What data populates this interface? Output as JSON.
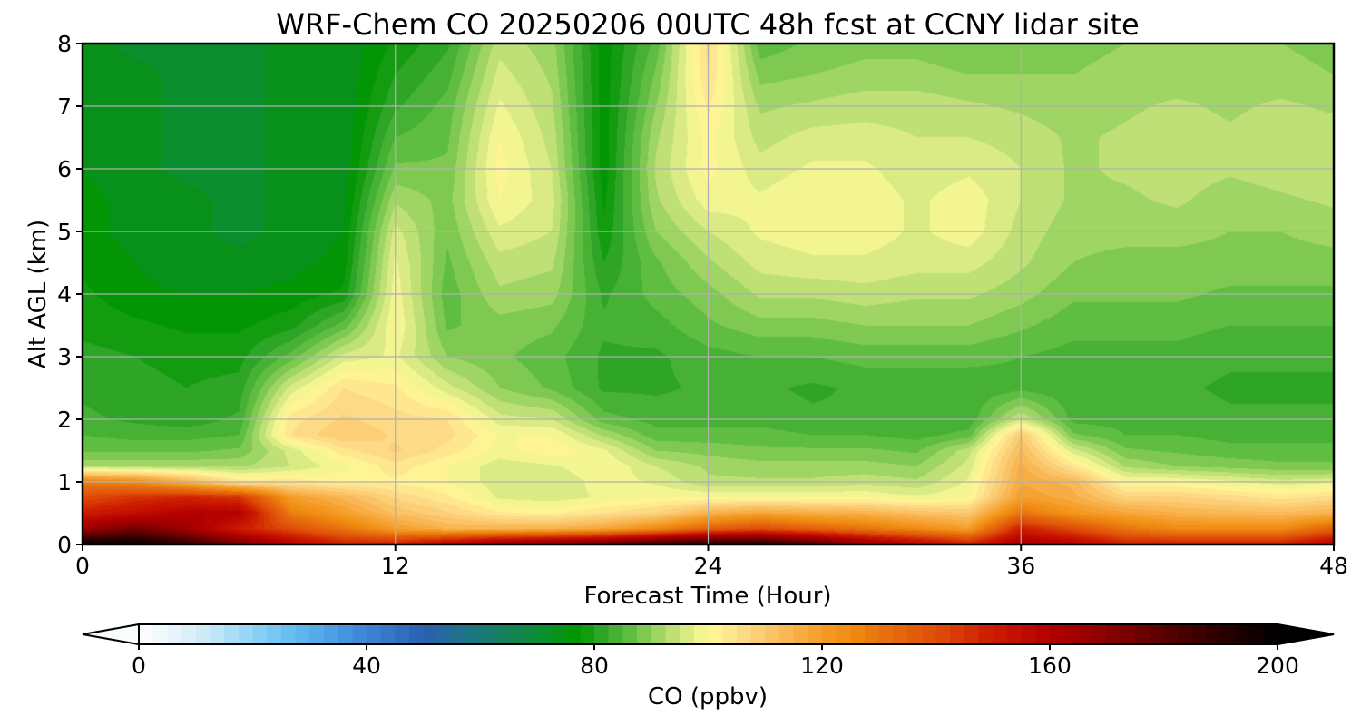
{
  "chart_data": {
    "type": "heatmap",
    "title": "WRF-Chem CO  20250206 00UTC 48h fcst at CCNY lidar site",
    "xlabel": "Forecast Time (Hour)",
    "ylabel": "Alt AGL (km)",
    "xlim": [
      0,
      48
    ],
    "ylim": [
      0,
      8
    ],
    "xticks": [
      0,
      12,
      24,
      36,
      48
    ],
    "yticks": [
      0,
      1,
      2,
      3,
      4,
      5,
      6,
      7,
      8
    ],
    "grid": true,
    "z_units": "ppbv",
    "x": [
      0,
      2,
      4,
      6,
      8,
      10,
      12,
      14,
      16,
      18,
      20,
      22,
      24,
      26,
      28,
      30,
      32,
      34,
      36,
      38,
      40,
      42,
      44,
      46,
      48
    ],
    "y": [
      0,
      0.25,
      0.5,
      0.75,
      1,
      1.25,
      1.5,
      1.75,
      2,
      2.5,
      3,
      3.5,
      4,
      4.5,
      5,
      5.5,
      6,
      6.5,
      7,
      7.5,
      8
    ],
    "z": [
      [
        200,
        200,
        190,
        175,
        160,
        150,
        150,
        160,
        170,
        175,
        180,
        190,
        195,
        195,
        185,
        170,
        160,
        150,
        165,
        160,
        150,
        150,
        150,
        150,
        160
      ],
      [
        165,
        175,
        165,
        150,
        140,
        130,
        120,
        115,
        115,
        115,
        118,
        125,
        135,
        140,
        135,
        130,
        125,
        120,
        150,
        140,
        130,
        125,
        125,
        125,
        135
      ],
      [
        150,
        155,
        160,
        160,
        128,
        120,
        112,
        108,
        103,
        102,
        105,
        108,
        115,
        118,
        116,
        115,
        112,
        110,
        130,
        122,
        118,
        115,
        114,
        113,
        115
      ],
      [
        140,
        145,
        148,
        145,
        120,
        114,
        107,
        103,
        97,
        96,
        98,
        100,
        100,
        100,
        100,
        100,
        98,
        100,
        120,
        116,
        108,
        108,
        106,
        104,
        106
      ],
      [
        128,
        125,
        115,
        104,
        104,
        102,
        102,
        100,
        96,
        95,
        99,
        97,
        93,
        93,
        93,
        94,
        93,
        98,
        117,
        114,
        100,
        100,
        98,
        96,
        97
      ],
      [
        92,
        92,
        92,
        92,
        95,
        99,
        104,
        100,
        96,
        97,
        100,
        95,
        92,
        91,
        91,
        91,
        90,
        96,
        116,
        104,
        92,
        90,
        89,
        88,
        88
      ],
      [
        87,
        87,
        87,
        88,
        96,
        104,
        108,
        104,
        99,
        102,
        98,
        90,
        89,
        88,
        88,
        88,
        87,
        94,
        113,
        96,
        88,
        87,
        86,
        86,
        86
      ],
      [
        85,
        84,
        84,
        85,
        105,
        110,
        107,
        106,
        100,
        100,
        92,
        86,
        86,
        86,
        85,
        85,
        84,
        86,
        110,
        88,
        85,
        85,
        84,
        84,
        84
      ],
      [
        83,
        82,
        81,
        83,
        104,
        108,
        106,
        105,
        96,
        95,
        86,
        84,
        84,
        84,
        83,
        83,
        83,
        83,
        95,
        84,
        84,
        84,
        83,
        83,
        83
      ],
      [
        82,
        81,
        80,
        81,
        96,
        105,
        103,
        96,
        90,
        87,
        82,
        82,
        83,
        83,
        82,
        83,
        83,
        83,
        84,
        83,
        83,
        83,
        82,
        82,
        82
      ],
      [
        81,
        80,
        79,
        79,
        86,
        96,
        98,
        90,
        88,
        86,
        82,
        82,
        84,
        85,
        85,
        86,
        86,
        86,
        85,
        84,
        84,
        84,
        83,
        83,
        83
      ],
      [
        79,
        78,
        77,
        77,
        79,
        86,
        100,
        87,
        89,
        88,
        83,
        84,
        87,
        89,
        89,
        90,
        90,
        90,
        88,
        86,
        86,
        86,
        85,
        85,
        85
      ],
      [
        78,
        76,
        75,
        75,
        76,
        78,
        99,
        86,
        92,
        91,
        82,
        86,
        89,
        93,
        93,
        94,
        93,
        93,
        91,
        88,
        88,
        88,
        87,
        87,
        87
      ],
      [
        77,
        75,
        73,
        73,
        74,
        76,
        98,
        87,
        94,
        93,
        80,
        87,
        92,
        96,
        97,
        97,
        96,
        96,
        93,
        90,
        89,
        89,
        89,
        89,
        89
      ],
      [
        76,
        74,
        73,
        72,
        73,
        75,
        96,
        88,
        97,
        95,
        78,
        90,
        95,
        98,
        99,
        99,
        97,
        99,
        94,
        91,
        91,
        91,
        90,
        90,
        91
      ],
      [
        76,
        74,
        73,
        72,
        73,
        74,
        92,
        89,
        100,
        96,
        77,
        92,
        99,
        98,
        100,
        99,
        97,
        99,
        95,
        92,
        92,
        93,
        91,
        92,
        93
      ],
      [
        75,
        73,
        72,
        72,
        73,
        73,
        88,
        88,
        101,
        95,
        76,
        93,
        101,
        96,
        98,
        98,
        96,
        97,
        95,
        92,
        93,
        94,
        93,
        94,
        95
      ],
      [
        75,
        73,
        72,
        72,
        73,
        73,
        85,
        87,
        100,
        94,
        76,
        92,
        101,
        94,
        96,
        96,
        95,
        95,
        94,
        92,
        93,
        94,
        93,
        94,
        94
      ],
      [
        74,
        73,
        72,
        72,
        73,
        73,
        82,
        86,
        98,
        93,
        76,
        90,
        103,
        92,
        93,
        94,
        94,
        93,
        92,
        91,
        92,
        93,
        92,
        93,
        92
      ],
      [
        74,
        73,
        72,
        72,
        73,
        73,
        80,
        84,
        96,
        92,
        76,
        88,
        105,
        89,
        90,
        91,
        91,
        90,
        90,
        90,
        91,
        91,
        91,
        91,
        90
      ],
      [
        73,
        72,
        72,
        72,
        73,
        73,
        78,
        82,
        94,
        91,
        76,
        86,
        106,
        86,
        88,
        89,
        89,
        88,
        88,
        89,
        90,
        90,
        90,
        90,
        89
      ]
    ],
    "colorbar": {
      "label": "CO  (ppbv)",
      "ticks": [
        0,
        40,
        80,
        120,
        160,
        200
      ],
      "range": [
        0,
        200
      ],
      "extend": "both",
      "colormap": [
        [
          0,
          "#ffffff"
        ],
        [
          10,
          "#d8eef8"
        ],
        [
          20,
          "#8fd4f4"
        ],
        [
          28,
          "#5eb8ef"
        ],
        [
          40,
          "#3d84d6"
        ],
        [
          50,
          "#2a60b0"
        ],
        [
          60,
          "#1a7a7a"
        ],
        [
          72,
          "#0a8f28"
        ],
        [
          77,
          "#009600"
        ],
        [
          82,
          "#36a82e"
        ],
        [
          86,
          "#5cbd40"
        ],
        [
          90,
          "#8fcf5a"
        ],
        [
          95,
          "#cde680"
        ],
        [
          100,
          "#fffa96"
        ],
        [
          105,
          "#fde08c"
        ],
        [
          110,
          "#fbc96e"
        ],
        [
          115,
          "#f8b24c"
        ],
        [
          120,
          "#f59c28"
        ],
        [
          125,
          "#f08c10"
        ],
        [
          130,
          "#e87410"
        ],
        [
          140,
          "#df4d08"
        ],
        [
          150,
          "#cc1a00"
        ],
        [
          160,
          "#b40000"
        ],
        [
          170,
          "#8a0000"
        ],
        [
          180,
          "#5a0000"
        ],
        [
          190,
          "#2a0000"
        ],
        [
          200,
          "#000000"
        ]
      ]
    }
  }
}
